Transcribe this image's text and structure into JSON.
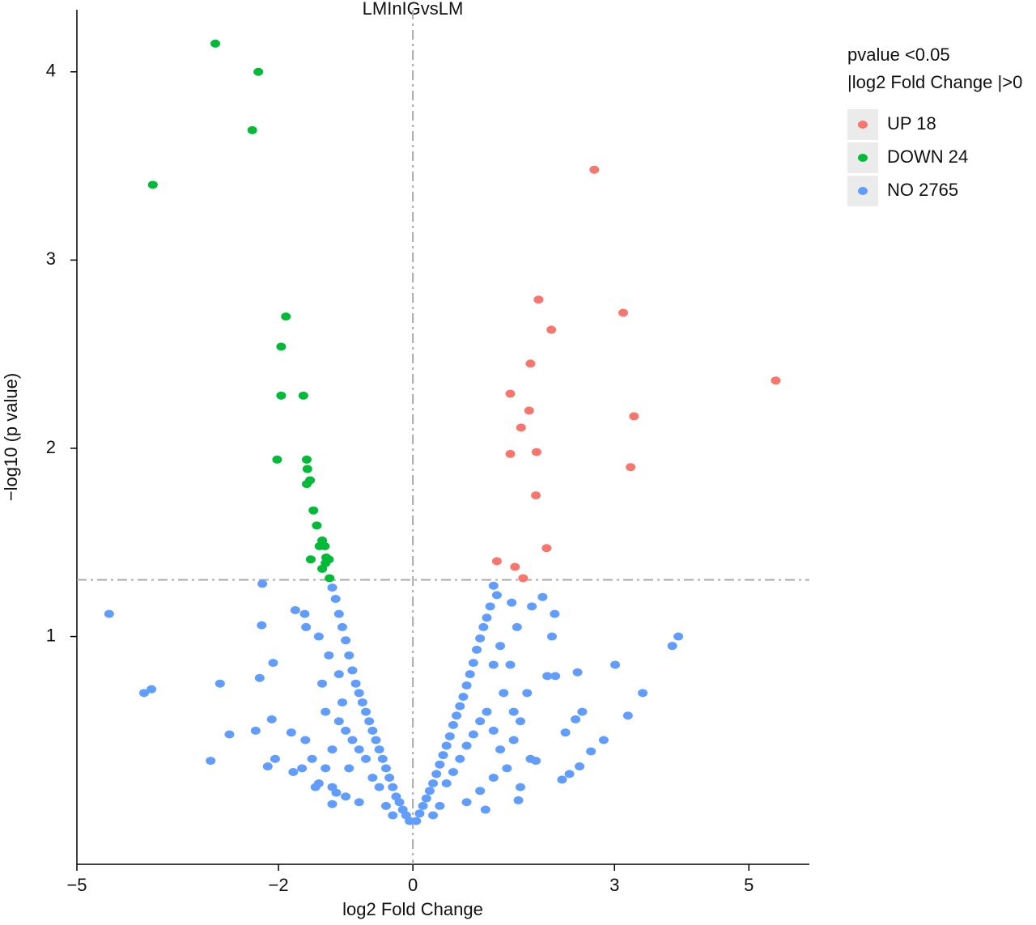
{
  "chart_data": {
    "type": "scatter",
    "title": "LMInIGvsLM",
    "x_label": "log2 Fold Change",
    "y_label": "−log10 (p value)",
    "legend_title": [
      "pvalue <0.05",
      "|log2 Fold Change |>0"
    ],
    "legend_position": "right",
    "xlim": [
      -5,
      5.9
    ],
    "ylim": [
      -0.21,
      4.33
    ],
    "xticks": [
      {
        "value": -5,
        "label": "−5"
      },
      {
        "value": -2,
        "label": "−2"
      },
      0,
      3,
      5
    ],
    "yticks": [
      1,
      2,
      3,
      4
    ],
    "hline": 1.301,
    "vline": 0,
    "series": [
      {
        "name": "UP 18",
        "color": "#f8766d",
        "x": [
          2.7,
          1.87,
          3.13,
          2.06,
          1.75,
          5.4,
          1.45,
          1.73,
          3.29,
          1.61,
          1.45,
          1.84,
          3.24,
          1.83,
          1.99,
          1.25,
          1.52,
          1.64
        ],
        "values": [
          3.48,
          2.79,
          2.72,
          2.63,
          2.45,
          2.36,
          2.29,
          2.2,
          2.17,
          2.11,
          1.97,
          1.98,
          1.9,
          1.75,
          1.47,
          1.4,
          1.37,
          1.31
        ]
      },
      {
        "name": "DOWN 24",
        "color": "#00ba38",
        "x": [
          -2.94,
          -2.3,
          -2.39,
          -3.87,
          -1.89,
          -1.96,
          -1.96,
          -1.63,
          -2.02,
          -1.58,
          -1.57,
          -1.58,
          -1.53,
          -1.48,
          -1.43,
          -1.35,
          -1.39,
          -1.31,
          -1.52,
          -1.25,
          -1.3,
          -1.35,
          -1.24,
          -1.29
        ],
        "values": [
          4.15,
          4.0,
          3.69,
          3.4,
          2.7,
          2.54,
          2.28,
          2.28,
          1.94,
          1.94,
          1.89,
          1.81,
          1.83,
          1.67,
          1.59,
          1.51,
          1.48,
          1.48,
          1.41,
          1.41,
          1.39,
          1.36,
          1.31,
          1.42
        ]
      },
      {
        "name": "NO 2765",
        "color": "#619cff",
        "x": [
          -4.52,
          -3.89,
          -4.0,
          -2.87,
          -3.01,
          -2.73,
          -2.24,
          -2.25,
          -2.28,
          -2.08,
          -2.34,
          -2.1,
          -2.16,
          -2.05,
          -1.81,
          -1.78,
          -1.75,
          -1.61,
          -1.59,
          3.95,
          3.86,
          3.01,
          3.42,
          2.45,
          3.2,
          2.52,
          2.42,
          2.84,
          2.65,
          2.27,
          2.48,
          2.33,
          2.22,
          2.11,
          2.07,
          1.93,
          1.77,
          2.0,
          2.12,
          1.83,
          1.57,
          1.2,
          1.47,
          1.08,
          -1.2,
          -1.14,
          -0.05,
          -0.1,
          -0.15,
          -0.2,
          -0.25,
          -0.3,
          -0.35,
          -0.4,
          -0.45,
          -0.5,
          -0.55,
          -0.6,
          -0.65,
          -0.7,
          -0.75,
          -0.8,
          -0.85,
          -0.9,
          -0.95,
          -1.0,
          -1.05,
          -1.1,
          -1.15,
          -1.2,
          -0.5,
          -0.6,
          -0.7,
          -0.8,
          -0.9,
          -1.0,
          -1.1,
          -1.2,
          -1.3,
          -1.4,
          -1.2,
          -1.0,
          -0.8,
          -1.5,
          -1.6,
          -1.3,
          -1.35,
          -1.25,
          -1.1,
          -1.45,
          -1.65,
          -0.3,
          -0.4,
          -1.05,
          -0.95,
          -1.4,
          0.05,
          0.1,
          0.15,
          0.2,
          0.25,
          0.3,
          0.35,
          0.4,
          0.45,
          0.5,
          0.55,
          0.6,
          0.65,
          0.7,
          0.75,
          0.8,
          0.85,
          0.9,
          0.95,
          1.0,
          1.05,
          1.1,
          1.15,
          1.25,
          0.5,
          0.6,
          0.7,
          0.8,
          0.9,
          1.0,
          1.1,
          1.2,
          1.3,
          1.4,
          1.2,
          1.0,
          0.8,
          1.5,
          1.6,
          1.35,
          1.45,
          1.3,
          1.2,
          1.6,
          1.75,
          0.3,
          0.4,
          1.5,
          1.7,
          1.55
        ],
        "values": [
          1.12,
          0.72,
          0.7,
          0.75,
          0.34,
          0.48,
          1.28,
          1.06,
          0.78,
          0.86,
          0.5,
          0.56,
          0.31,
          0.35,
          0.49,
          0.28,
          1.14,
          1.12,
          1.05,
          1.0,
          0.95,
          0.85,
          0.7,
          0.81,
          0.58,
          0.6,
          0.56,
          0.45,
          0.39,
          0.49,
          0.31,
          0.27,
          0.24,
          1.12,
          1.0,
          1.21,
          1.16,
          0.79,
          0.79,
          0.34,
          0.13,
          1.27,
          1.18,
          0.08,
          0.11,
          0.17,
          0.02,
          0.05,
          0.08,
          0.12,
          0.15,
          0.2,
          0.25,
          0.3,
          0.35,
          0.4,
          0.45,
          0.5,
          0.55,
          0.6,
          0.65,
          0.7,
          0.75,
          0.82,
          0.9,
          0.98,
          1.05,
          1.12,
          1.2,
          1.26,
          0.2,
          0.25,
          0.35,
          0.4,
          0.45,
          0.5,
          0.55,
          0.4,
          0.3,
          0.22,
          0.2,
          0.15,
          0.12,
          0.35,
          0.45,
          0.6,
          0.75,
          0.9,
          0.8,
          0.2,
          0.3,
          0.05,
          0.1,
          0.65,
          0.3,
          1.0,
          0.02,
          0.06,
          0.1,
          0.14,
          0.18,
          0.22,
          0.27,
          0.32,
          0.37,
          0.42,
          0.47,
          0.53,
          0.58,
          0.63,
          0.68,
          0.74,
          0.8,
          0.86,
          0.93,
          0.99,
          1.05,
          1.1,
          1.16,
          1.22,
          0.22,
          0.28,
          0.35,
          0.42,
          0.48,
          0.55,
          0.6,
          0.5,
          0.4,
          0.3,
          0.25,
          0.18,
          0.12,
          0.45,
          0.55,
          0.7,
          0.85,
          0.95,
          0.85,
          0.2,
          0.35,
          0.05,
          0.1,
          0.6,
          0.7,
          1.05
        ]
      }
    ]
  }
}
